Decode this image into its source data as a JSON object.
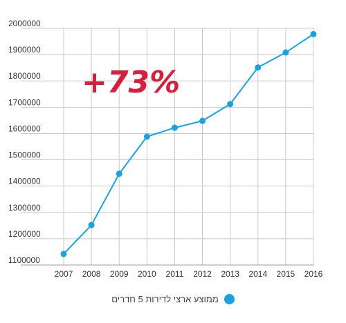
{
  "chart_data": {
    "type": "line",
    "x": [
      "2007",
      "2008",
      "2009",
      "2010",
      "2011",
      "2012",
      "2013",
      "2014",
      "2015",
      "2016"
    ],
    "series": [
      {
        "name": "ממוצע ארצי לדירות 5 חדרים",
        "values": [
          1142000,
          1252000,
          1447000,
          1588000,
          1622000,
          1648000,
          1712000,
          1851000,
          1908000,
          1978000
        ]
      }
    ],
    "yticks": [
      "1100000",
      "1200000",
      "1300000",
      "1400000",
      "1500000",
      "1600000",
      "1700000",
      "1800000",
      "1900000",
      "2000000"
    ],
    "ylim": [
      1100000,
      2000000
    ],
    "grid": true,
    "legend_position": "bottom-center",
    "annotation": "+73%",
    "colors": {
      "series": "#1ba1e2",
      "annotation": "#d3203f"
    }
  }
}
